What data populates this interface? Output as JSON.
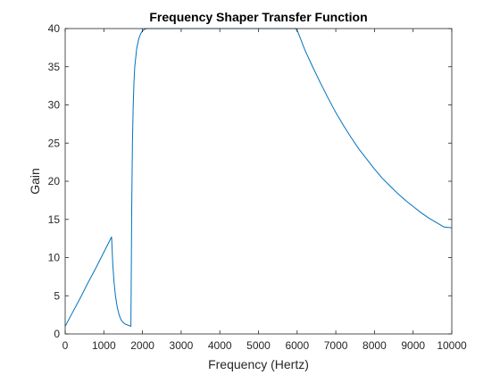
{
  "chart_data": {
    "type": "line",
    "title": "Frequency Shaper Transfer Function",
    "xlabel": "Frequency (Hertz)",
    "ylabel": "Gain",
    "xlim": [
      0,
      10000
    ],
    "ylim": [
      0,
      40
    ],
    "xticks": [
      0,
      1000,
      2000,
      3000,
      4000,
      5000,
      6000,
      7000,
      8000,
      9000,
      10000
    ],
    "yticks": [
      0,
      5,
      10,
      15,
      20,
      25,
      30,
      35,
      40
    ],
    "grid": false,
    "line_color": "#0072BD",
    "series": [
      {
        "x": [
          0,
          200,
          400,
          600,
          800,
          1000,
          1200,
          1230,
          1260,
          1300,
          1350,
          1400,
          1450,
          1500,
          1550,
          1600,
          1650,
          1700,
          1710,
          1720,
          1740,
          1760,
          1780,
          1800,
          1850,
          1900,
          1950,
          2000,
          2050,
          2100,
          2150,
          2200,
          2300,
          2400,
          2500,
          3000,
          4000,
          5000,
          5950,
          6000,
          6100,
          6200,
          6400,
          6600,
          6800,
          7000,
          7200,
          7400,
          7600,
          7800,
          8000,
          8200,
          8400,
          8600,
          8800,
          9000,
          9200,
          9400,
          9600,
          9800,
          10000
        ],
        "y": [
          1.0,
          2.9,
          4.8,
          6.8,
          8.7,
          10.7,
          12.7,
          9.3,
          7.0,
          5.0,
          3.4,
          2.4,
          1.8,
          1.5,
          1.3,
          1.2,
          1.1,
          1.0,
          8.0,
          16.0,
          25.0,
          30.0,
          33.0,
          35.0,
          37.4,
          38.6,
          39.3,
          39.7,
          39.9,
          40.0,
          40.0,
          40.0,
          40.0,
          40.0,
          40.0,
          40.0,
          40.0,
          40.0,
          40.0,
          39.8,
          38.5,
          37.2,
          35.0,
          32.9,
          30.9,
          29.0,
          27.3,
          25.7,
          24.2,
          22.9,
          21.6,
          20.4,
          19.4,
          18.4,
          17.5,
          16.7,
          15.9,
          15.2,
          14.6,
          14.0,
          13.9
        ]
      }
    ]
  }
}
